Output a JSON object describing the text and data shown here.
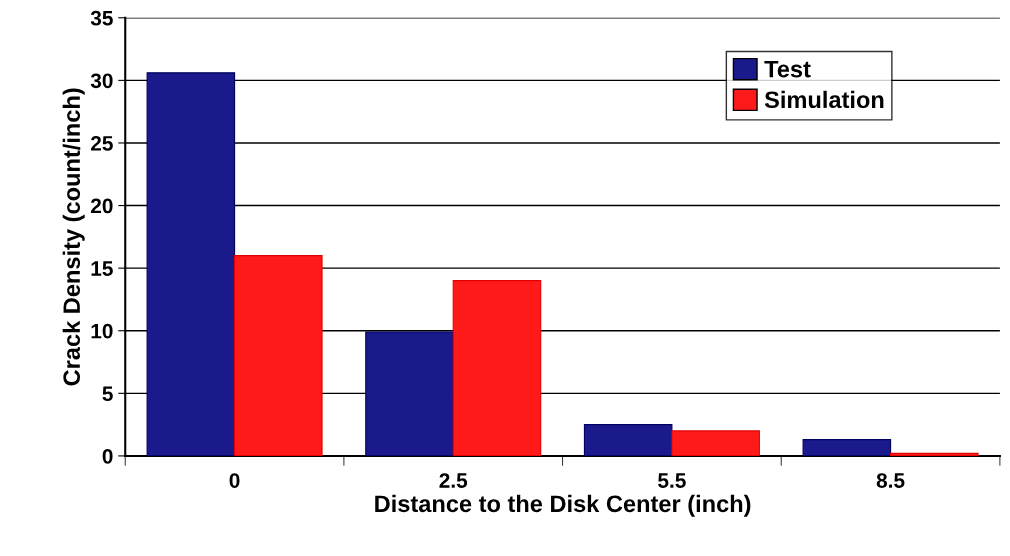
{
  "chart_data": {
    "type": "bar",
    "xlabel": "Distance to the Disk Center (inch)",
    "ylabel": "Crack Density (count/inch)",
    "categories": [
      "0",
      "2.5",
      "5.5",
      "8.5"
    ],
    "series": [
      {
        "name": "Test",
        "color": "#1a1a8c",
        "values": [
          30.6,
          9.9,
          2.5,
          1.3
        ]
      },
      {
        "name": "Simulation",
        "color": "#ff1a1a",
        "values": [
          16,
          14,
          2,
          0.2
        ]
      }
    ],
    "ylim": [
      0,
      35
    ],
    "yticks": [
      0,
      5,
      10,
      15,
      20,
      25,
      30,
      35
    ],
    "grid": "y",
    "legend": "top right"
  }
}
